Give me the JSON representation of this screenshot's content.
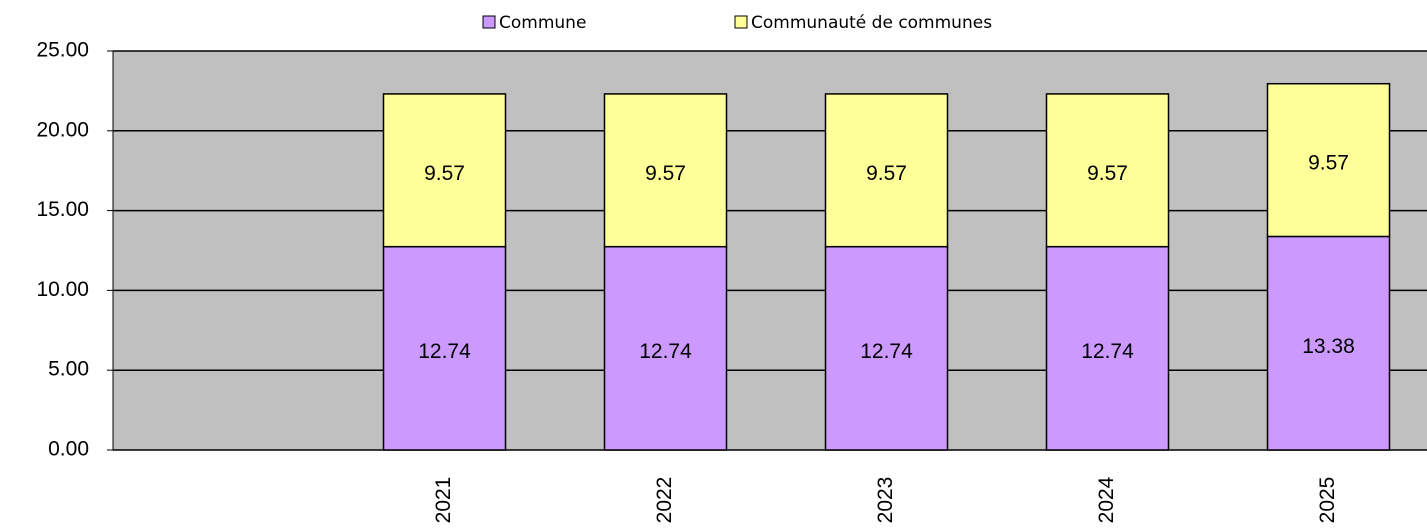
{
  "chart_data": {
    "type": "stacked_bar",
    "categories": [
      null,
      "2021",
      "2022",
      "2023",
      "2024",
      "2025"
    ],
    "series": [
      {
        "name": "Commune",
        "color": "#cc99ff",
        "values": [
          null,
          12.74,
          12.74,
          12.74,
          12.74,
          13.38
        ]
      },
      {
        "name": "Communauté de communes",
        "color": "#ffff99",
        "values": [
          null,
          9.57,
          9.57,
          9.57,
          9.57,
          9.57
        ]
      }
    ],
    "ylim": [
      0,
      25
    ],
    "yticks": [
      {
        "value": 0,
        "label": "0.00"
      },
      {
        "value": 5,
        "label": "5.00"
      },
      {
        "value": 10,
        "label": "10.00"
      },
      {
        "value": 15,
        "label": "15.00"
      },
      {
        "value": 20,
        "label": "20.00"
      },
      {
        "value": 25,
        "label": "25.00"
      }
    ],
    "grid": true,
    "legend": "top",
    "background": "#c0c0c0"
  }
}
